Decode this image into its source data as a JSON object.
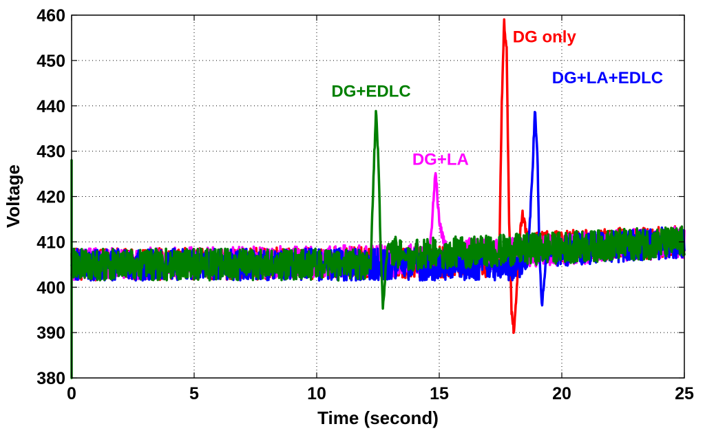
{
  "chart_data": {
    "type": "line",
    "title": "",
    "xlabel": "Time (second)",
    "ylabel": "Voltage",
    "xlim": [
      0,
      25
    ],
    "ylim": [
      380,
      460
    ],
    "xticks": [
      0,
      5,
      10,
      15,
      20,
      25
    ],
    "yticks": [
      380,
      390,
      400,
      410,
      420,
      430,
      440,
      450,
      460
    ],
    "xtick_labels": [
      "0",
      "5",
      "10",
      "15",
      "20",
      "25"
    ],
    "ytick_labels": [
      "380",
      "390",
      "400",
      "410",
      "420",
      "430",
      "440",
      "450",
      "460"
    ],
    "grid": true,
    "legend": "none",
    "series": [
      {
        "name": "DG only",
        "color": "#ff0000",
        "baseline": [
          [
            0,
            405
          ],
          [
            17.2,
            405.5
          ],
          [
            17.45,
            407
          ],
          [
            17.55,
            440
          ],
          [
            17.65,
            458.5
          ],
          [
            17.75,
            452
          ],
          [
            17.85,
            415
          ],
          [
            17.95,
            395
          ],
          [
            18.05,
            390
          ],
          [
            18.15,
            399
          ],
          [
            18.3,
            412
          ],
          [
            18.4,
            416
          ],
          [
            18.55,
            412
          ],
          [
            18.8,
            409
          ],
          [
            25,
            410
          ]
        ],
        "noise": 3.5
      },
      {
        "name": "DG+LA",
        "color": "#ff00ff",
        "baseline": [
          [
            0,
            405
          ],
          [
            14.6,
            406
          ],
          [
            14.75,
            418
          ],
          [
            14.85,
            426
          ],
          [
            15.0,
            414
          ],
          [
            15.2,
            410
          ],
          [
            15.45,
            407.5
          ],
          [
            17.5,
            407.5
          ],
          [
            25,
            410
          ]
        ],
        "noise": 3.5
      },
      {
        "name": "DG+LA+EDLC",
        "color": "#0000ff",
        "baseline": [
          [
            0,
            405
          ],
          [
            18.6,
            405
          ],
          [
            18.8,
            425
          ],
          [
            18.9,
            439.5
          ],
          [
            19.0,
            430
          ],
          [
            19.1,
            405
          ],
          [
            19.2,
            396
          ],
          [
            19.35,
            406
          ],
          [
            19.6,
            408
          ],
          [
            25,
            410
          ]
        ],
        "noise": 3.5
      },
      {
        "name": "DG+EDLC",
        "color": "#007f00",
        "baseline": [
          [
            0,
            405
          ],
          [
            12.2,
            405
          ],
          [
            12.32,
            425
          ],
          [
            12.42,
            439.5
          ],
          [
            12.52,
            428
          ],
          [
            12.6,
            410
          ],
          [
            12.7,
            395
          ],
          [
            12.8,
            403
          ],
          [
            12.9,
            409
          ],
          [
            13.6,
            407
          ],
          [
            15,
            407.5
          ],
          [
            25,
            410
          ]
        ],
        "noise": 3.5,
        "initial_spike": [
          [
            0.0,
            428
          ],
          [
            0.02,
            380
          ]
        ]
      }
    ],
    "annotations": [
      {
        "text": "DG only",
        "series": "DG only",
        "color": "#ff0000",
        "x": 18.0,
        "y": 454
      },
      {
        "text": "DG+LA+EDLC",
        "series": "DG+LA+EDLC",
        "color": "#0000ff",
        "x": 19.6,
        "y": 445
      },
      {
        "text": "DG+EDLC",
        "series": "DG+EDLC",
        "color": "#007f00",
        "x": 10.6,
        "y": 442
      },
      {
        "text": "DG+LA",
        "series": "DG+LA",
        "color": "#ff00ff",
        "x": 13.9,
        "y": 427
      }
    ]
  }
}
